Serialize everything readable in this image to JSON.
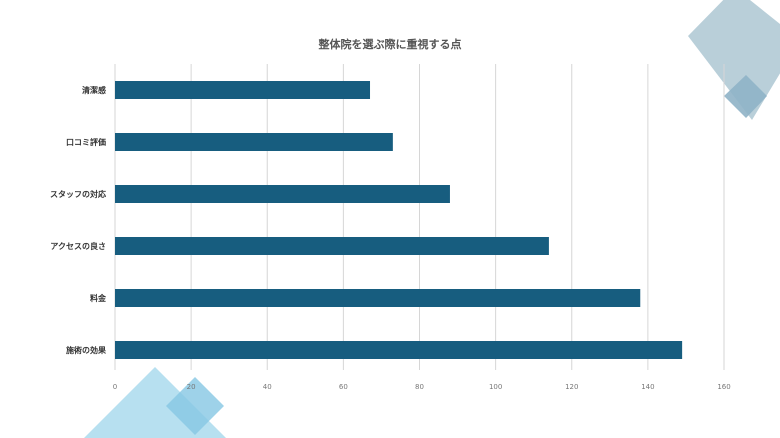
{
  "chart_data": {
    "type": "bar",
    "orientation": "horizontal",
    "title": "整体院を選ぶ際に重視する点",
    "categories": [
      "清潔感",
      "口コミ評価",
      "スタッフの対応",
      "アクセスの良さ",
      "料金",
      "施術の効果"
    ],
    "values": [
      67,
      73,
      88,
      114,
      138,
      149
    ],
    "xlim": [
      0,
      160
    ],
    "xticks": [
      0,
      20,
      40,
      60,
      80,
      100,
      120,
      140,
      160
    ],
    "grid": "vertical",
    "legend": "none",
    "xlabel": "",
    "ylabel": ""
  },
  "colors": {
    "bar": "#175d7f",
    "grid": "#d6d6d6",
    "deco_top": "#b9cfd9",
    "deco_top_small": "#8fb3c6",
    "deco_bottom": "#b7e0f0",
    "deco_bottom_small": "#86c7e3"
  }
}
